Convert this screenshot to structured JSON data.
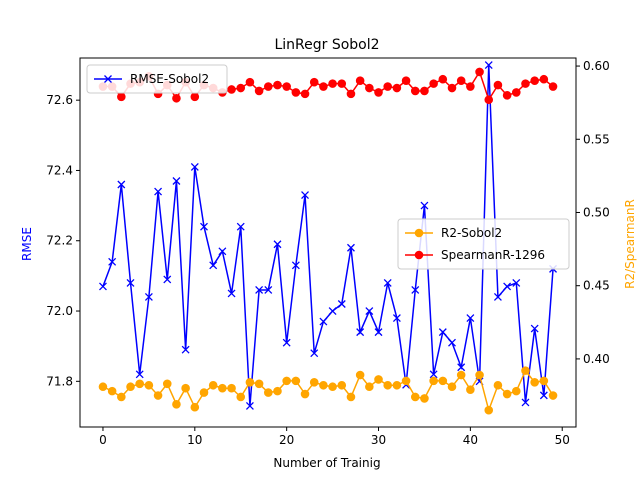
{
  "chart_data": {
    "type": "line",
    "title": "LinRegr Sobol2",
    "xlabel": "Number of Trainig",
    "ylabel_left": "RMSE",
    "ylabel_right": "R2/SpearmanR",
    "xlim": [
      -2.5,
      51.5
    ],
    "ylim_left": [
      71.67,
      72.72
    ],
    "ylim_right": [
      0.3535,
      0.6055
    ],
    "xticks": [
      0,
      10,
      20,
      30,
      40,
      50
    ],
    "yticks_left": [
      71.8,
      72.0,
      72.2,
      72.4,
      72.6
    ],
    "yticks_right": [
      0.4,
      0.45,
      0.5,
      0.55,
      0.6
    ],
    "ytick_labels_left": [
      "71.8",
      "72.0",
      "72.2",
      "72.4",
      "72.6"
    ],
    "ytick_labels_right": [
      "0.40",
      "0.45",
      "0.50",
      "0.55",
      "0.60"
    ],
    "grid": false,
    "x": [
      0,
      1,
      2,
      3,
      4,
      5,
      6,
      7,
      8,
      9,
      10,
      11,
      12,
      13,
      14,
      15,
      16,
      17,
      18,
      19,
      20,
      21,
      22,
      23,
      24,
      25,
      26,
      27,
      28,
      29,
      30,
      31,
      32,
      33,
      34,
      35,
      36,
      37,
      38,
      39,
      40,
      41,
      42,
      43,
      44,
      45,
      46,
      47,
      48,
      49
    ],
    "series": [
      {
        "name": "RMSE-Sobol2",
        "axis": "left",
        "color": "#0000ff",
        "marker": "x",
        "values": [
          72.07,
          72.14,
          72.36,
          72.08,
          71.82,
          72.04,
          72.34,
          72.09,
          72.37,
          71.89,
          72.41,
          72.24,
          72.13,
          72.17,
          72.05,
          72.24,
          71.73,
          72.06,
          72.06,
          72.19,
          71.91,
          72.13,
          72.33,
          71.88,
          71.97,
          72.0,
          72.02,
          72.18,
          71.94,
          72.0,
          71.94,
          72.08,
          71.98,
          71.79,
          72.06,
          72.3,
          71.82,
          71.94,
          71.91,
          71.84,
          71.98,
          71.8,
          72.7,
          72.04,
          72.07,
          72.08,
          71.74,
          71.95,
          71.76,
          72.12
        ]
      },
      {
        "name": "R2-Sobol2",
        "axis": "right",
        "color": "#ffa500",
        "marker": "o",
        "values": [
          0.381,
          0.378,
          0.374,
          0.381,
          0.383,
          0.382,
          0.375,
          0.383,
          0.369,
          0.38,
          0.367,
          0.377,
          0.382,
          0.38,
          0.38,
          0.374,
          0.384,
          0.383,
          0.377,
          0.378,
          0.385,
          0.385,
          0.376,
          0.384,
          0.382,
          0.381,
          0.382,
          0.374,
          0.389,
          0.381,
          0.386,
          0.382,
          0.382,
          0.385,
          0.374,
          0.373,
          0.385,
          0.385,
          0.381,
          0.389,
          0.379,
          0.389,
          0.365,
          0.382,
          0.376,
          0.378,
          0.392,
          0.384,
          0.385,
          0.375
        ]
      },
      {
        "name": "SpearmanR-1296",
        "axis": "right",
        "color": "#ff0000",
        "marker": "o",
        "values": [
          0.586,
          0.586,
          0.579,
          0.588,
          0.589,
          0.593,
          0.581,
          0.587,
          0.578,
          0.589,
          0.579,
          0.587,
          0.585,
          0.582,
          0.584,
          0.585,
          0.589,
          0.583,
          0.586,
          0.587,
          0.586,
          0.582,
          0.581,
          0.589,
          0.586,
          0.588,
          0.588,
          0.581,
          0.59,
          0.585,
          0.582,
          0.586,
          0.585,
          0.59,
          0.583,
          0.583,
          0.588,
          0.591,
          0.585,
          0.59,
          0.586,
          0.596,
          0.577,
          0.587,
          0.58,
          0.582,
          0.588,
          0.59,
          0.591,
          0.586
        ]
      }
    ],
    "legend_left": {
      "placement": "upper-left",
      "entries": [
        "RMSE-Sobol2"
      ]
    },
    "legend_right": {
      "placement": "center-right",
      "entries": [
        "R2-Sobol2",
        "SpearmanR-1296"
      ]
    }
  }
}
